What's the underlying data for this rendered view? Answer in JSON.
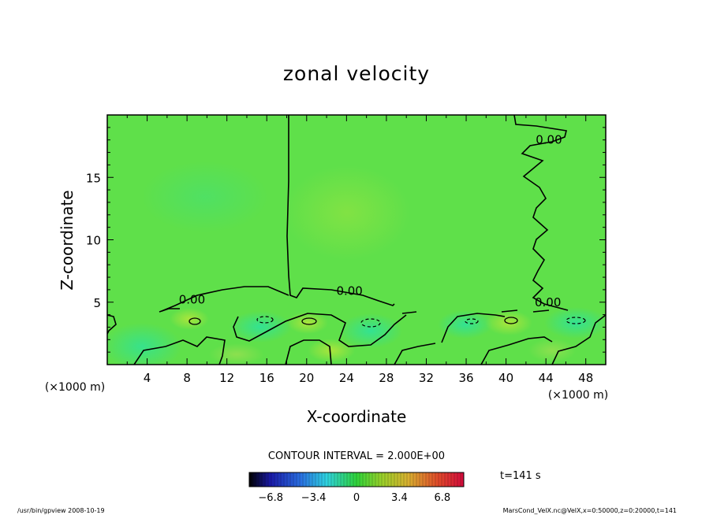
{
  "chart_data": {
    "type": "heatmap",
    "title": "zonal velocity",
    "xlabel": "X-coordinate",
    "ylabel": "Z-coordinate",
    "x_unit": "(×1000 m)",
    "y_unit": "(×1000 m)",
    "xlim": [
      0,
      50
    ],
    "ylim": [
      0,
      20
    ],
    "x_ticks": [
      4,
      8,
      12,
      16,
      20,
      24,
      28,
      32,
      36,
      40,
      44,
      48
    ],
    "y_ticks": [
      5,
      10,
      15
    ],
    "contour_interval_text": "CONTOUR INTERVAL = 2.000E+00",
    "contour_labels": [
      {
        "text": "0.00",
        "x": 8.5,
        "z": 5.2
      },
      {
        "text": "0.00",
        "x": 24.3,
        "z": 5.9
      },
      {
        "text": "0.00",
        "x": 44.3,
        "z": 18.0
      },
      {
        "text": "0.00",
        "x": 44.2,
        "z": 5.0
      }
    ],
    "colorbar": {
      "min": -8.5,
      "max": 8.5,
      "tick_values": [
        -6.8,
        -3.4,
        0,
        3.4,
        6.8
      ],
      "tick_labels": [
        "−6.8",
        "−3.4",
        "0",
        "3.4",
        "6.8"
      ]
    },
    "time_label": "t=141 s",
    "footer_left": "/usr/bin/gpview  2008-10-19",
    "footer_right": "MarsCond_VelX.nc@VelX,x=0:50000,z=0:20000,t=141"
  }
}
